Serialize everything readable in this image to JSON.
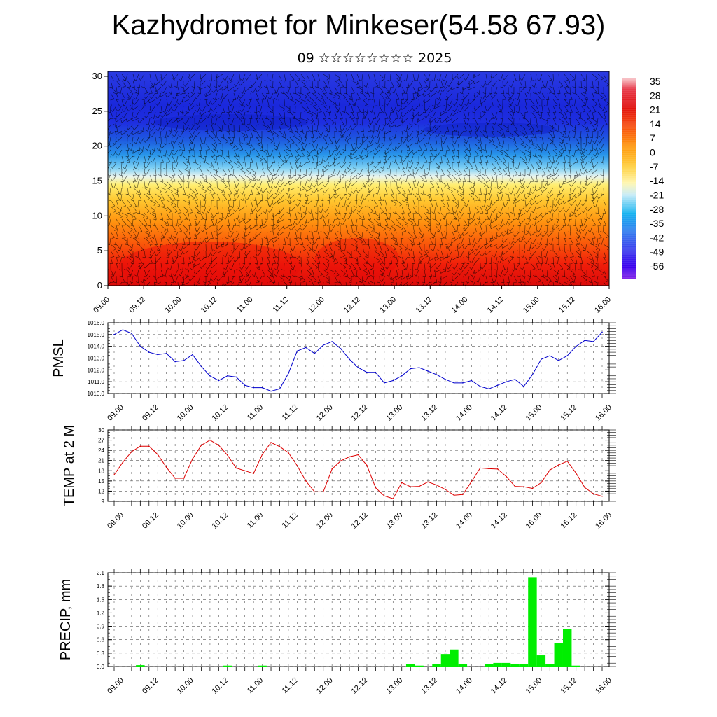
{
  "title": "Kazhydromet for Minkeser(54.58 67.93)",
  "subtitle": "09 ☆☆☆☆☆☆☆☆ 2025",
  "colors": {
    "pmsl_line": "#0000cc",
    "temp_line": "#dd0000",
    "precip_bar": "#00ee00"
  },
  "chart_data": [
    {
      "type": "heatmap",
      "title": "",
      "xlabel": "",
      "ylabel": "",
      "x_tick_labels": [
        "09.00",
        "09.12",
        "10.00",
        "10.12",
        "11.00",
        "11.12",
        "12.00",
        "12.12",
        "13.00",
        "13.12",
        "14.00",
        "14.12",
        "15.00",
        "15.12",
        "16.00"
      ],
      "y_ticks": [
        0,
        5,
        10,
        15,
        20,
        25,
        30
      ],
      "ylim": [
        0,
        30.7
      ],
      "colorbar_labels": [
        35,
        28,
        21,
        14,
        7,
        0,
        -7,
        -14,
        -21,
        -28,
        -35,
        -42,
        -49,
        -56
      ],
      "temperature_profile_by_level": [
        {
          "level": 0,
          "value": 28
        },
        {
          "level": 3,
          "value": 26
        },
        {
          "level": 6,
          "value": 22
        },
        {
          "level": 9,
          "value": 17
        },
        {
          "level": 12,
          "value": 11
        },
        {
          "level": 14,
          "value": 5
        },
        {
          "level": 15.5,
          "value": -8
        },
        {
          "level": 17,
          "value": -22
        },
        {
          "level": 19,
          "value": -33
        },
        {
          "level": 21,
          "value": -42
        },
        {
          "level": 23,
          "value": -50
        },
        {
          "level": 25,
          "value": -54
        },
        {
          "level": 30.7,
          "value": -55
        }
      ]
    },
    {
      "type": "line",
      "ylabel": "PMSL",
      "ylim": [
        1010.0,
        1016.0
      ],
      "y_tick_labels": [
        "1010.0",
        "1011.0",
        "1012.0",
        "1013.0",
        "1014.0",
        "1015.0",
        "1016.0"
      ],
      "x_tick_labels": [
        "09.00",
        "09.12",
        "10.00",
        "10.12",
        "11.00",
        "11.12",
        "12.00",
        "12.12",
        "13.00",
        "13.12",
        "14.00",
        "14.12",
        "15.00",
        "15.12",
        "16.00"
      ],
      "series": [
        {
          "values": [
            1015.0,
            1015.4,
            1015.1,
            1014.0,
            1013.5,
            1013.3,
            1013.4,
            1012.7,
            1012.8,
            1013.3,
            1012.3,
            1011.5,
            1011.1,
            1011.5,
            1011.4,
            1010.7,
            1010.5,
            1010.5,
            1010.2,
            1010.4,
            1011.7,
            1013.6,
            1013.9,
            1013.4,
            1014.1,
            1014.4,
            1013.8,
            1012.9,
            1012.2,
            1011.8,
            1011.8,
            1010.9,
            1011.1,
            1011.5,
            1012.1,
            1012.2,
            1011.9,
            1011.6,
            1011.2,
            1010.9,
            1010.9,
            1011.1,
            1010.6,
            1010.4,
            1010.7,
            1011.0,
            1011.2,
            1010.6,
            1011.6,
            1012.9,
            1013.2,
            1012.8,
            1013.2,
            1014.0,
            1014.5,
            1014.4,
            1015.2
          ]
        }
      ]
    },
    {
      "type": "line",
      "ylabel": "TEMP at 2 M",
      "ylim": [
        9,
        30
      ],
      "y_tick_labels": [
        "9",
        "12",
        "15",
        "18",
        "21",
        "24",
        "27",
        "30"
      ],
      "x_tick_labels": [
        "09.00",
        "09.12",
        "10.00",
        "10.12",
        "11.00",
        "11.12",
        "12.00",
        "12.12",
        "13.00",
        "13.12",
        "14.00",
        "14.12",
        "15.00",
        "15.12",
        "16.00"
      ],
      "series": [
        {
          "values": [
            16.8,
            20.5,
            23.6,
            25.2,
            25.2,
            22.8,
            19.0,
            15.8,
            15.8,
            21.5,
            25.5,
            27.0,
            25.5,
            22.6,
            18.8,
            18.0,
            17.2,
            22.8,
            26.3,
            25.1,
            23.3,
            19.5,
            15.0,
            11.8,
            11.8,
            18.5,
            20.9,
            22.1,
            22.7,
            19.6,
            13.0,
            10.6,
            9.8,
            14.5,
            13.3,
            13.4,
            14.7,
            13.8,
            12.5,
            10.8,
            11.0,
            14.8,
            18.8,
            18.6,
            18.5,
            16.3,
            13.4,
            13.3,
            12.8,
            14.5,
            18.2,
            19.7,
            20.8,
            17.3,
            13.1,
            11.2,
            10.5
          ]
        }
      ]
    },
    {
      "type": "bar",
      "ylabel": "PRECIP, mm",
      "ylim": [
        0,
        2.1
      ],
      "y_tick_labels": [
        "0.0",
        "0.3",
        "0.6",
        "0.9",
        "1.2",
        "1.5",
        "1.8",
        "2.1"
      ],
      "x_tick_labels": [
        "09.00",
        "09.12",
        "10.00",
        "10.12",
        "11.00",
        "11.12",
        "12.00",
        "12.12",
        "13.00",
        "13.12",
        "14.00",
        "14.12",
        "15.00",
        "15.12",
        "16.00"
      ],
      "series": [
        {
          "values": [
            0,
            0,
            0,
            0.03,
            0,
            0,
            0,
            0,
            0,
            0,
            0,
            0,
            0,
            0.02,
            0,
            0,
            0,
            0.02,
            0,
            0,
            0,
            0,
            0,
            0,
            0,
            0,
            0,
            0,
            0,
            0,
            0,
            0,
            0,
            0,
            0.05,
            0.02,
            0,
            0.05,
            0.28,
            0.38,
            0.05,
            0,
            0,
            0.05,
            0.08,
            0.08,
            0.05,
            0.05,
            2.0,
            0.25,
            0.05,
            0.52,
            0.84,
            0.02,
            0,
            0,
            0
          ]
        }
      ]
    }
  ]
}
